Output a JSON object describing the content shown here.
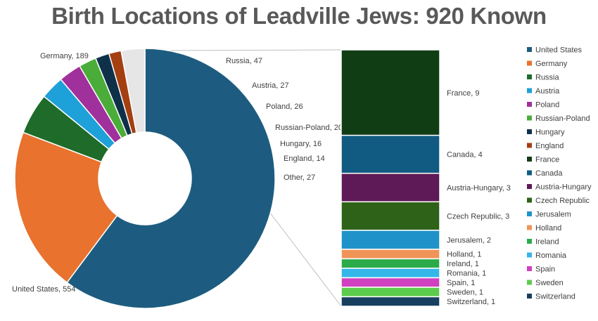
{
  "chart_data": {
    "type": "pie",
    "title": "Birth Locations of Leadville Jews: 920 Known",
    "pie_slices": [
      {
        "name": "United States",
        "value": 554,
        "label": "United States, 554",
        "color": "#1d5c80"
      },
      {
        "name": "Germany",
        "value": 189,
        "label": "Germany, 189",
        "color": "#e8722e"
      },
      {
        "name": "Russia",
        "value": 47,
        "label": "Russia, 47",
        "color": "#1e6b2a"
      },
      {
        "name": "Austria",
        "value": 27,
        "label": "Austria, 27",
        "color": "#1ea0d8"
      },
      {
        "name": "Poland",
        "value": 26,
        "label": "Poland, 26",
        "color": "#a0309b"
      },
      {
        "name": "Russian-Poland",
        "value": 20,
        "label": "Russian-Poland, 20",
        "color": "#4aad3a"
      },
      {
        "name": "Hungary",
        "value": 16,
        "label": "Hungary, 16",
        "color": "#0f3049"
      },
      {
        "name": "England",
        "value": 14,
        "label": "England, 14",
        "color": "#a33f11"
      },
      {
        "name": "Other",
        "value": 27,
        "label": "Other, 27",
        "color": "#e6e6e6"
      }
    ],
    "other_breakdown": [
      {
        "name": "France",
        "value": 9,
        "label": "France, 9",
        "color": "#113d15"
      },
      {
        "name": "Canada",
        "value": 4,
        "label": "Canada, 4",
        "color": "#115b82"
      },
      {
        "name": "Austria-Hungary",
        "value": 3,
        "label": "Austria-Hungary, 3",
        "color": "#5e1a56"
      },
      {
        "name": "Czech Republic",
        "value": 3,
        "label": "Czech Republic, 3",
        "color": "#2e6219"
      },
      {
        "name": "Jerusalem",
        "value": 2,
        "label": "Jerusalem, 2",
        "color": "#1f93c9"
      },
      {
        "name": "Holland",
        "value": 1,
        "label": "Holland, 1",
        "color": "#f09457"
      },
      {
        "name": "Ireland",
        "value": 1,
        "label": "Ireland, 1",
        "color": "#2bab49"
      },
      {
        "name": "Romania",
        "value": 1,
        "label": "Romania, 1",
        "color": "#35b6e8"
      },
      {
        "name": "Spain",
        "value": 1,
        "label": "Spain, 1",
        "color": "#d040c0"
      },
      {
        "name": "Sweden",
        "value": 1,
        "label": "Sweden, 1",
        "color": "#5ccc4c"
      },
      {
        "name": "Switzerland",
        "value": 1,
        "label": "Switzerland, 1",
        "color": "#173f5f"
      }
    ],
    "legend": {
      "placement": "right",
      "entries": [
        {
          "name": "United States",
          "color": "#1d5c80"
        },
        {
          "name": "Germany",
          "color": "#e8722e"
        },
        {
          "name": "Russia",
          "color": "#1e6b2a"
        },
        {
          "name": "Austria",
          "color": "#1ea0d8"
        },
        {
          "name": "Poland",
          "color": "#a0309b"
        },
        {
          "name": "Russian-Poland",
          "color": "#4aad3a"
        },
        {
          "name": "Hungary",
          "color": "#0f3049"
        },
        {
          "name": "England",
          "color": "#a33f11"
        },
        {
          "name": "France",
          "color": "#113d15"
        },
        {
          "name": "Canada",
          "color": "#115b82"
        },
        {
          "name": "Austria-Hungary",
          "color": "#5e1a56"
        },
        {
          "name": "Czech Republic",
          "color": "#2e6219"
        },
        {
          "name": "Jerusalem",
          "color": "#1f93c9"
        },
        {
          "name": "Holland",
          "color": "#f09457"
        },
        {
          "name": "Ireland",
          "color": "#2bab49"
        },
        {
          "name": "Romania",
          "color": "#35b6e8"
        },
        {
          "name": "Spain",
          "color": "#d040c0"
        },
        {
          "name": "Sweden",
          "color": "#5ccc4c"
        },
        {
          "name": "Switzerland",
          "color": "#173f5f"
        }
      ]
    }
  }
}
